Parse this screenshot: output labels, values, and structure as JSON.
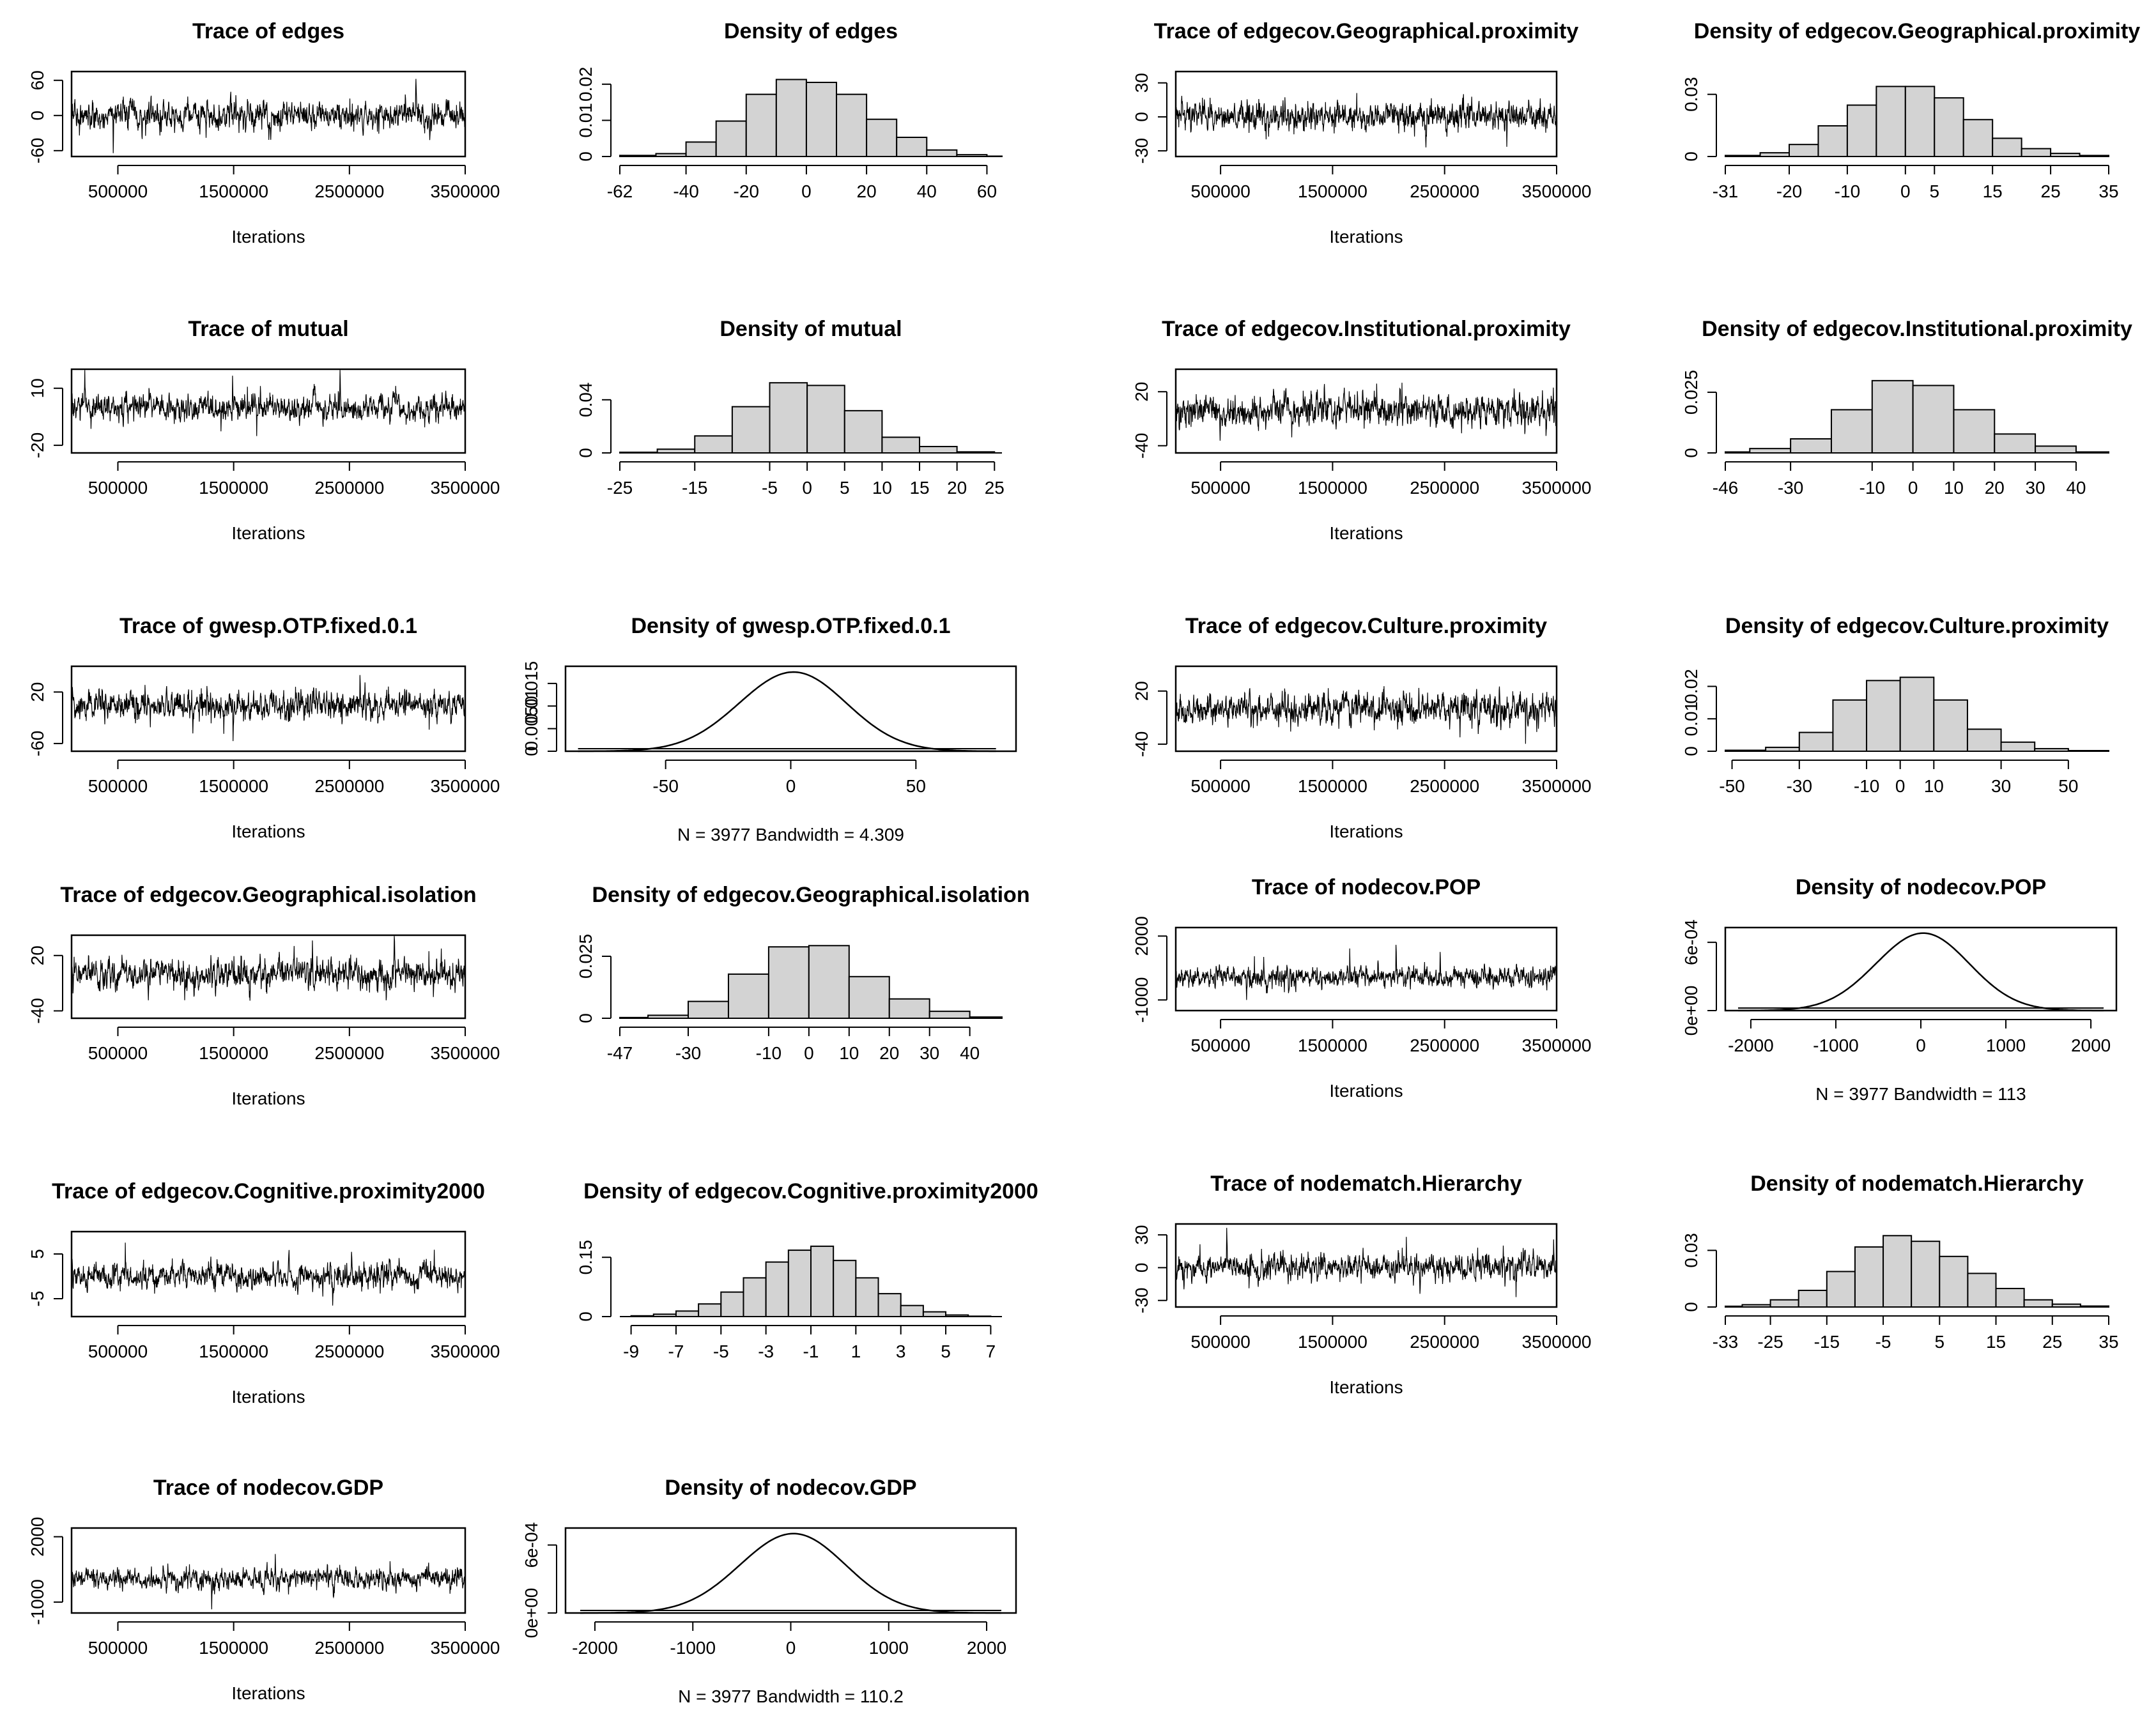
{
  "chart_data": [
    {
      "id": "trace-edges",
      "type": "line",
      "title": "Trace of edges",
      "xlabel": "Iterations",
      "xlim": [
        100000,
        3500000
      ],
      "xticks": [
        500000,
        1500000,
        2500000,
        3500000
      ],
      "yticks": [
        -60,
        0,
        60
      ],
      "ylim": [
        -70,
        75
      ],
      "series": [
        {
          "amp": 22,
          "spike": 2.4,
          "seed": 11
        }
      ]
    },
    {
      "id": "density-edges",
      "type": "bar",
      "title": "Density of edges",
      "xlim": [
        -62,
        65
      ],
      "xticks": [
        -62,
        -40,
        -20,
        0,
        20,
        40,
        60
      ],
      "yticks": [
        0.0,
        0.01,
        0.02
      ],
      "ylim": [
        0,
        0.0235
      ],
      "bins": [
        [
          -62,
          -50,
          0.0003
        ],
        [
          -50,
          -40,
          0.0008
        ],
        [
          -40,
          -30,
          0.004
        ],
        [
          -30,
          -20,
          0.0098
        ],
        [
          -20,
          -10,
          0.0172
        ],
        [
          -10,
          0,
          0.0213
        ],
        [
          0,
          10,
          0.0205
        ],
        [
          10,
          20,
          0.0172
        ],
        [
          20,
          30,
          0.0103
        ],
        [
          30,
          40,
          0.0053
        ],
        [
          40,
          50,
          0.0018
        ],
        [
          50,
          60,
          0.0005
        ],
        [
          60,
          65,
          0.0001
        ]
      ]
    },
    {
      "id": "trace-geo-prox",
      "type": "line",
      "title": "Trace of edgecov.Geographical.proximity",
      "xlabel": "Iterations",
      "xlim": [
        100000,
        3500000
      ],
      "xticks": [
        500000,
        1500000,
        2500000,
        3500000
      ],
      "yticks": [
        -30,
        0,
        30
      ],
      "ylim": [
        -35,
        40
      ],
      "series": [
        {
          "amp": 11,
          "spike": 2.4,
          "seed": 23
        }
      ]
    },
    {
      "id": "density-geo-prox",
      "type": "bar",
      "title": "Density of edgecov.Geographical.proximity",
      "xlim": [
        -31,
        35
      ],
      "xticks": [
        -31,
        -20,
        -10,
        0,
        5,
        15,
        25,
        35
      ],
      "yticks": [
        0.0,
        0.03
      ],
      "ylim": [
        0,
        0.041
      ],
      "bins": [
        [
          -31,
          -25,
          0.0005
        ],
        [
          -25,
          -20,
          0.0018
        ],
        [
          -20,
          -15,
          0.0058
        ],
        [
          -15,
          -10,
          0.0148
        ],
        [
          -10,
          -5,
          0.0248
        ],
        [
          -5,
          0,
          0.0338
        ],
        [
          0,
          5,
          0.0338
        ],
        [
          5,
          10,
          0.0283
        ],
        [
          10,
          15,
          0.0178
        ],
        [
          15,
          20,
          0.0088
        ],
        [
          20,
          25,
          0.0038
        ],
        [
          25,
          30,
          0.0015
        ],
        [
          30,
          35,
          0.0005
        ]
      ]
    },
    {
      "id": "trace-mutual",
      "type": "line",
      "title": "Trace of mutual",
      "xlabel": "Iterations",
      "xlim": [
        100000,
        3500000
      ],
      "xticks": [
        500000,
        1500000,
        2500000,
        3500000
      ],
      "yticks": [
        -20,
        10
      ],
      "ylim": [
        -24,
        20
      ],
      "series": [
        {
          "amp": 6.5,
          "spike": 2.4,
          "seed": 37
        }
      ]
    },
    {
      "id": "density-mutual",
      "type": "bar",
      "title": "Density of mutual",
      "xlim": [
        -25,
        26
      ],
      "xticks": [
        -25,
        -15,
        -5,
        0,
        5,
        10,
        15,
        20,
        25
      ],
      "yticks": [
        0.0,
        0.04
      ],
      "ylim": [
        0,
        0.063
      ],
      "bins": [
        [
          -25,
          -20,
          0.0005
        ],
        [
          -20,
          -15,
          0.0028
        ],
        [
          -15,
          -10,
          0.0128
        ],
        [
          -10,
          -5,
          0.0348
        ],
        [
          -5,
          0,
          0.0528
        ],
        [
          0,
          5,
          0.0508
        ],
        [
          5,
          10,
          0.0318
        ],
        [
          10,
          15,
          0.0118
        ],
        [
          15,
          20,
          0.0048
        ],
        [
          20,
          25,
          0.0008
        ]
      ]
    },
    {
      "id": "trace-inst-prox",
      "type": "line",
      "title": "Trace of edgecov.Institutional.proximity",
      "xlabel": "Iterations",
      "xlim": [
        100000,
        3500000
      ],
      "xticks": [
        500000,
        1500000,
        2500000,
        3500000
      ],
      "yticks": [
        -40,
        20
      ],
      "ylim": [
        -48,
        45
      ],
      "series": [
        {
          "amp": 16,
          "spike": 2.4,
          "seed": 41
        }
      ]
    },
    {
      "id": "density-inst-prox",
      "type": "bar",
      "title": "Density of edgecov.Institutional.proximity",
      "xlim": [
        -46,
        48
      ],
      "xticks": [
        -46,
        -30,
        -10,
        0,
        10,
        20,
        30,
        40
      ],
      "yticks": [
        0.0,
        0.025
      ],
      "ylim": [
        0,
        0.0345
      ],
      "bins": [
        [
          -46,
          -40,
          0.0004
        ],
        [
          -40,
          -30,
          0.0018
        ],
        [
          -30,
          -20,
          0.0058
        ],
        [
          -20,
          -10,
          0.0178
        ],
        [
          -10,
          0,
          0.0298
        ],
        [
          0,
          10,
          0.0278
        ],
        [
          10,
          20,
          0.0178
        ],
        [
          20,
          30,
          0.0078
        ],
        [
          30,
          40,
          0.0028
        ],
        [
          40,
          48,
          0.0004
        ]
      ]
    },
    {
      "id": "trace-gwesp",
      "type": "line",
      "title": "Trace of gwesp.OTP.fixed.0.1",
      "xlabel": "Iterations",
      "xlim": [
        100000,
        3500000
      ],
      "xticks": [
        500000,
        1500000,
        2500000,
        3500000
      ],
      "yticks": [
        -60,
        20
      ],
      "ylim": [
        -72,
        60
      ],
      "series": [
        {
          "amp": 21,
          "spike": 2.4,
          "seed": 53
        }
      ]
    },
    {
      "id": "density-gwesp",
      "type": "line",
      "title": "Density of gwesp.OTP.fixed.0.1",
      "xlabel": "N = 3977   Bandwidth = 4.309",
      "xlim": [
        -90,
        90
      ],
      "xticks": [
        -50,
        0,
        50
      ],
      "yticks": [
        0.0,
        0.005,
        0.01,
        0.015
      ],
      "ylim": [
        0,
        0.0188
      ],
      "density": {
        "mu": 0,
        "sigma": 21.5,
        "peak": 0.0175,
        "xmin": -85,
        "xmax": 82
      }
    },
    {
      "id": "trace-cult-prox",
      "type": "line",
      "title": "Trace of edgecov.Culture.proximity",
      "xlabel": "Iterations",
      "xlim": [
        100000,
        3500000
      ],
      "xticks": [
        500000,
        1500000,
        2500000,
        3500000
      ],
      "yticks": [
        -40,
        20
      ],
      "ylim": [
        -48,
        48
      ],
      "series": [
        {
          "amp": 16,
          "spike": 2.4,
          "seed": 67
        }
      ]
    },
    {
      "id": "density-cult-prox",
      "type": "bar",
      "title": "Density of edgecov.Culture.proximity",
      "xlim": [
        -52,
        62
      ],
      "xticks": [
        -50,
        -30,
        -10,
        0,
        10,
        30,
        50
      ],
      "yticks": [
        0.0,
        0.01,
        0.02
      ],
      "ylim": [
        0,
        0.0262
      ],
      "bins": [
        [
          -52,
          -40,
          0.0003
        ],
        [
          -40,
          -30,
          0.0012
        ],
        [
          -30,
          -20,
          0.0058
        ],
        [
          -20,
          -10,
          0.0158
        ],
        [
          -10,
          0,
          0.0218
        ],
        [
          0,
          10,
          0.0228
        ],
        [
          10,
          20,
          0.0158
        ],
        [
          20,
          30,
          0.0068
        ],
        [
          30,
          40,
          0.0028
        ],
        [
          40,
          50,
          0.0008
        ],
        [
          50,
          62,
          0.0002
        ]
      ]
    },
    {
      "id": "trace-geo-iso",
      "type": "line",
      "title": "Trace of edgecov.Geographical.isolation",
      "xlabel": "Iterations",
      "xlim": [
        100000,
        3500000
      ],
      "xticks": [
        500000,
        1500000,
        2500000,
        3500000
      ],
      "yticks": [
        -40,
        20
      ],
      "ylim": [
        -48,
        42
      ],
      "series": [
        {
          "amp": 15,
          "spike": 2.4,
          "seed": 79
        }
      ]
    },
    {
      "id": "density-geo-iso",
      "type": "bar",
      "title": "Density of edgecov.Geographical.isolation",
      "xlim": [
        -47,
        48
      ],
      "xticks": [
        -47,
        -30,
        -10,
        0,
        10,
        20,
        30,
        40
      ],
      "yticks": [
        0.0,
        0.025
      ],
      "ylim": [
        0,
        0.0335
      ],
      "bins": [
        [
          -47,
          -40,
          0.0003
        ],
        [
          -40,
          -30,
          0.0012
        ],
        [
          -30,
          -20,
          0.0068
        ],
        [
          -20,
          -10,
          0.0178
        ],
        [
          -10,
          0,
          0.0288
        ],
        [
          0,
          10,
          0.0293
        ],
        [
          10,
          20,
          0.0168
        ],
        [
          20,
          30,
          0.0078
        ],
        [
          30,
          40,
          0.0028
        ],
        [
          40,
          48,
          0.0005
        ]
      ]
    },
    {
      "id": "trace-pop",
      "type": "line",
      "title": "Trace of nodecov.POP",
      "xlabel": "Iterations",
      "xlim": [
        100000,
        3500000
      ],
      "xticks": [
        500000,
        1500000,
        2500000,
        3500000
      ],
      "yticks": [
        -1000,
        2000
      ],
      "ylim": [
        -1500,
        2400
      ],
      "series": [
        {
          "amp": 440,
          "spike": 2.4,
          "seed": 83
        }
      ]
    },
    {
      "id": "density-pop",
      "type": "line",
      "title": "Density of nodecov.POP",
      "xlabel": "N = 3977   Bandwidth = 113",
      "xlim": [
        -2300,
        2300
      ],
      "xticks": [
        -2000,
        -1000,
        0,
        1000,
        2000
      ],
      "yticks": [
        "0e+00",
        "6e-04"
      ],
      "ytick_values": [
        0,
        0.0006
      ],
      "ylim": [
        0,
        0.00073
      ],
      "density": {
        "mu": 0,
        "sigma": 550,
        "peak": 0.00068,
        "xmin": -2150,
        "xmax": 2150
      }
    },
    {
      "id": "trace-cog-prox",
      "type": "line",
      "title": "Trace of edgecov.Cognitive.proximity2000",
      "xlabel": "Iterations",
      "xlim": [
        100000,
        3500000
      ],
      "xticks": [
        500000,
        1500000,
        2500000,
        3500000
      ],
      "yticks": [
        -5,
        5
      ],
      "ylim": [
        -9,
        10
      ],
      "series": [
        {
          "amp": 2.6,
          "spike": 2.4,
          "seed": 97
        }
      ]
    },
    {
      "id": "density-cog-prox",
      "type": "bar",
      "title": "Density of edgecov.Cognitive.proximity2000",
      "xlim": [
        -9.5,
        7.5
      ],
      "xticks": [
        -9,
        -7,
        -5,
        -3,
        -1,
        1,
        3,
        5,
        7
      ],
      "yticks": [
        0.0,
        0.15
      ],
      "ylim": [
        0,
        0.215
      ],
      "bins": [
        [
          -9,
          -8,
          0.002
        ],
        [
          -8,
          -7,
          0.006
        ],
        [
          -7,
          -6,
          0.014
        ],
        [
          -6,
          -5,
          0.032
        ],
        [
          -5,
          -4,
          0.062
        ],
        [
          -4,
          -3,
          0.098
        ],
        [
          -3,
          -2,
          0.138
        ],
        [
          -2,
          -1,
          0.168
        ],
        [
          -1,
          0,
          0.178
        ],
        [
          0,
          1,
          0.142
        ],
        [
          1,
          2,
          0.098
        ],
        [
          2,
          3,
          0.058
        ],
        [
          3,
          4,
          0.028
        ],
        [
          4,
          5,
          0.012
        ],
        [
          5,
          6,
          0.004
        ],
        [
          6,
          7,
          0.001
        ]
      ]
    },
    {
      "id": "trace-hier",
      "type": "line",
      "title": "Trace of nodematch.Hierarchy",
      "xlabel": "Iterations",
      "xlim": [
        100000,
        3500000
      ],
      "xticks": [
        500000,
        1500000,
        2500000,
        3500000
      ],
      "yticks": [
        -30,
        0,
        30
      ],
      "ylim": [
        -36,
        40
      ],
      "series": [
        {
          "amp": 10.5,
          "spike": 2.4,
          "seed": 101
        }
      ]
    },
    {
      "id": "density-hier",
      "type": "bar",
      "title": "Density of nodematch.Hierarchy",
      "xlim": [
        -33,
        35
      ],
      "xticks": [
        -33,
        -25,
        -15,
        -5,
        5,
        15,
        25,
        35
      ],
      "yticks": [
        0.0,
        0.03
      ],
      "ylim": [
        0,
        0.044
      ],
      "bins": [
        [
          -33,
          -30,
          0.0004
        ],
        [
          -30,
          -25,
          0.0012
        ],
        [
          -25,
          -20,
          0.0038
        ],
        [
          -20,
          -15,
          0.0088
        ],
        [
          -15,
          -10,
          0.0188
        ],
        [
          -10,
          -5,
          0.0318
        ],
        [
          -5,
          0,
          0.0378
        ],
        [
          0,
          5,
          0.0348
        ],
        [
          5,
          10,
          0.0268
        ],
        [
          10,
          15,
          0.0178
        ],
        [
          15,
          20,
          0.0098
        ],
        [
          20,
          25,
          0.0038
        ],
        [
          25,
          30,
          0.0015
        ],
        [
          30,
          35,
          0.0005
        ]
      ]
    },
    {
      "id": "trace-gdp",
      "type": "line",
      "title": "Trace of nodecov.GDP",
      "xlabel": "Iterations",
      "xlim": [
        100000,
        3500000
      ],
      "xticks": [
        500000,
        1500000,
        2500000,
        3500000
      ],
      "yticks": [
        -1000,
        2000
      ],
      "ylim": [
        -1500,
        2400
      ],
      "series": [
        {
          "amp": 430,
          "spike": 2.4,
          "seed": 113
        }
      ]
    },
    {
      "id": "density-gdp",
      "type": "line",
      "title": "Density of nodecov.GDP",
      "xlabel": "N = 3977   Bandwidth = 110.2",
      "xlim": [
        -2300,
        2300
      ],
      "xticks": [
        -2000,
        -1000,
        0,
        1000,
        2000
      ],
      "yticks": [
        "0e+00",
        "6e-04"
      ],
      "ytick_values": [
        0,
        0.0006
      ],
      "ylim": [
        0,
        0.00075
      ],
      "density": {
        "mu": 0,
        "sigma": 540,
        "peak": 0.0007,
        "xmin": -2150,
        "xmax": 2150
      }
    }
  ]
}
